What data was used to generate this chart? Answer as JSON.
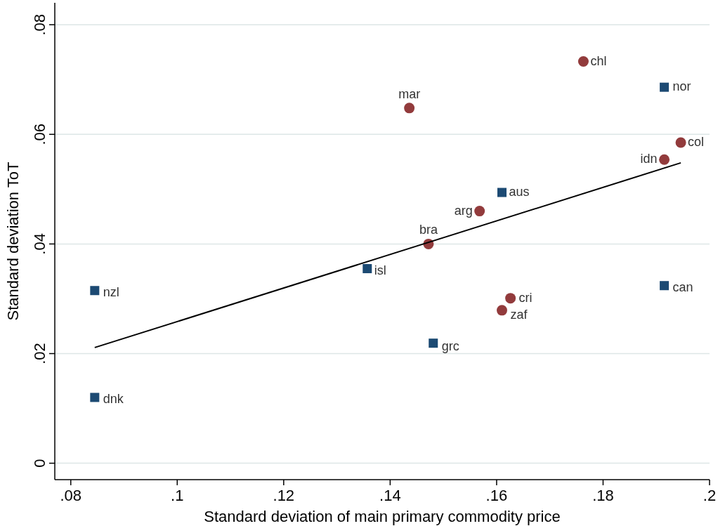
{
  "chart_data": {
    "type": "scatter",
    "xlabel": "Standard deviation of main primary commodity price",
    "ylabel": "Standard deviation ToT",
    "xlim": [
      0.077,
      0.2
    ],
    "ylim": [
      -0.003,
      0.084
    ],
    "xticks": [
      {
        "value": 0.08,
        "label": ".08"
      },
      {
        "value": 0.1,
        "label": ".1"
      },
      {
        "value": 0.12,
        "label": ".12"
      },
      {
        "value": 0.14,
        "label": ".14"
      },
      {
        "value": 0.16,
        "label": ".16"
      },
      {
        "value": 0.18,
        "label": ".18"
      },
      {
        "value": 0.2,
        "label": ".2"
      }
    ],
    "yticks": [
      {
        "value": 0,
        "label": "0"
      },
      {
        "value": 0.02,
        "label": ".02"
      },
      {
        "value": 0.04,
        "label": ".04"
      },
      {
        "value": 0.06,
        "label": ".06"
      },
      {
        "value": 0.08,
        "label": ".08"
      }
    ],
    "grid": "y",
    "series": [
      {
        "marker": "circle",
        "color": "#923b3c",
        "x": [
          0.1763,
          0.1436,
          0.1946,
          0.1915,
          0.1568,
          0.1472,
          0.1626,
          0.161
        ],
        "values": [
          0.0733,
          0.0648,
          0.0585,
          0.0554,
          0.046,
          0.04,
          0.0301,
          0.0279
        ]
      },
      {
        "marker": "square",
        "color": "#1c4a73",
        "x": [
          0.1915,
          0.161,
          0.1357,
          0.0845,
          0.1915,
          0.1481,
          0.0845
        ],
        "values": [
          0.0686,
          0.0494,
          0.0355,
          0.0315,
          0.0324,
          0.0219,
          0.012
        ]
      },
      {
        "type": "line",
        "color": "#000000",
        "x": [
          0.0845,
          0.1946
        ],
        "values": [
          0.0211,
          0.0548
        ]
      }
    ],
    "annotations": [
      {
        "text": "chl",
        "x": 0.1763,
        "y": 0.0733
      },
      {
        "text": "mar",
        "x": 0.1436,
        "y": 0.0648
      },
      {
        "text": "col",
        "x": 0.1946,
        "y": 0.0585
      },
      {
        "text": "idn",
        "x": 0.1915,
        "y": 0.0554
      },
      {
        "text": "arg",
        "x": 0.1568,
        "y": 0.046
      },
      {
        "text": "bra",
        "x": 0.1472,
        "y": 0.04
      },
      {
        "text": "cri",
        "x": 0.1626,
        "y": 0.0301
      },
      {
        "text": "zaf",
        "x": 0.161,
        "y": 0.0279
      },
      {
        "text": "nor",
        "x": 0.1915,
        "y": 0.0686
      },
      {
        "text": "aus",
        "x": 0.161,
        "y": 0.0494
      },
      {
        "text": "isl",
        "x": 0.1357,
        "y": 0.0355
      },
      {
        "text": "nzl",
        "x": 0.0845,
        "y": 0.0315
      },
      {
        "text": "can",
        "x": 0.1915,
        "y": 0.0324
      },
      {
        "text": "grc",
        "x": 0.1481,
        "y": 0.0219
      },
      {
        "text": "dnk",
        "x": 0.0845,
        "y": 0.012
      }
    ]
  }
}
